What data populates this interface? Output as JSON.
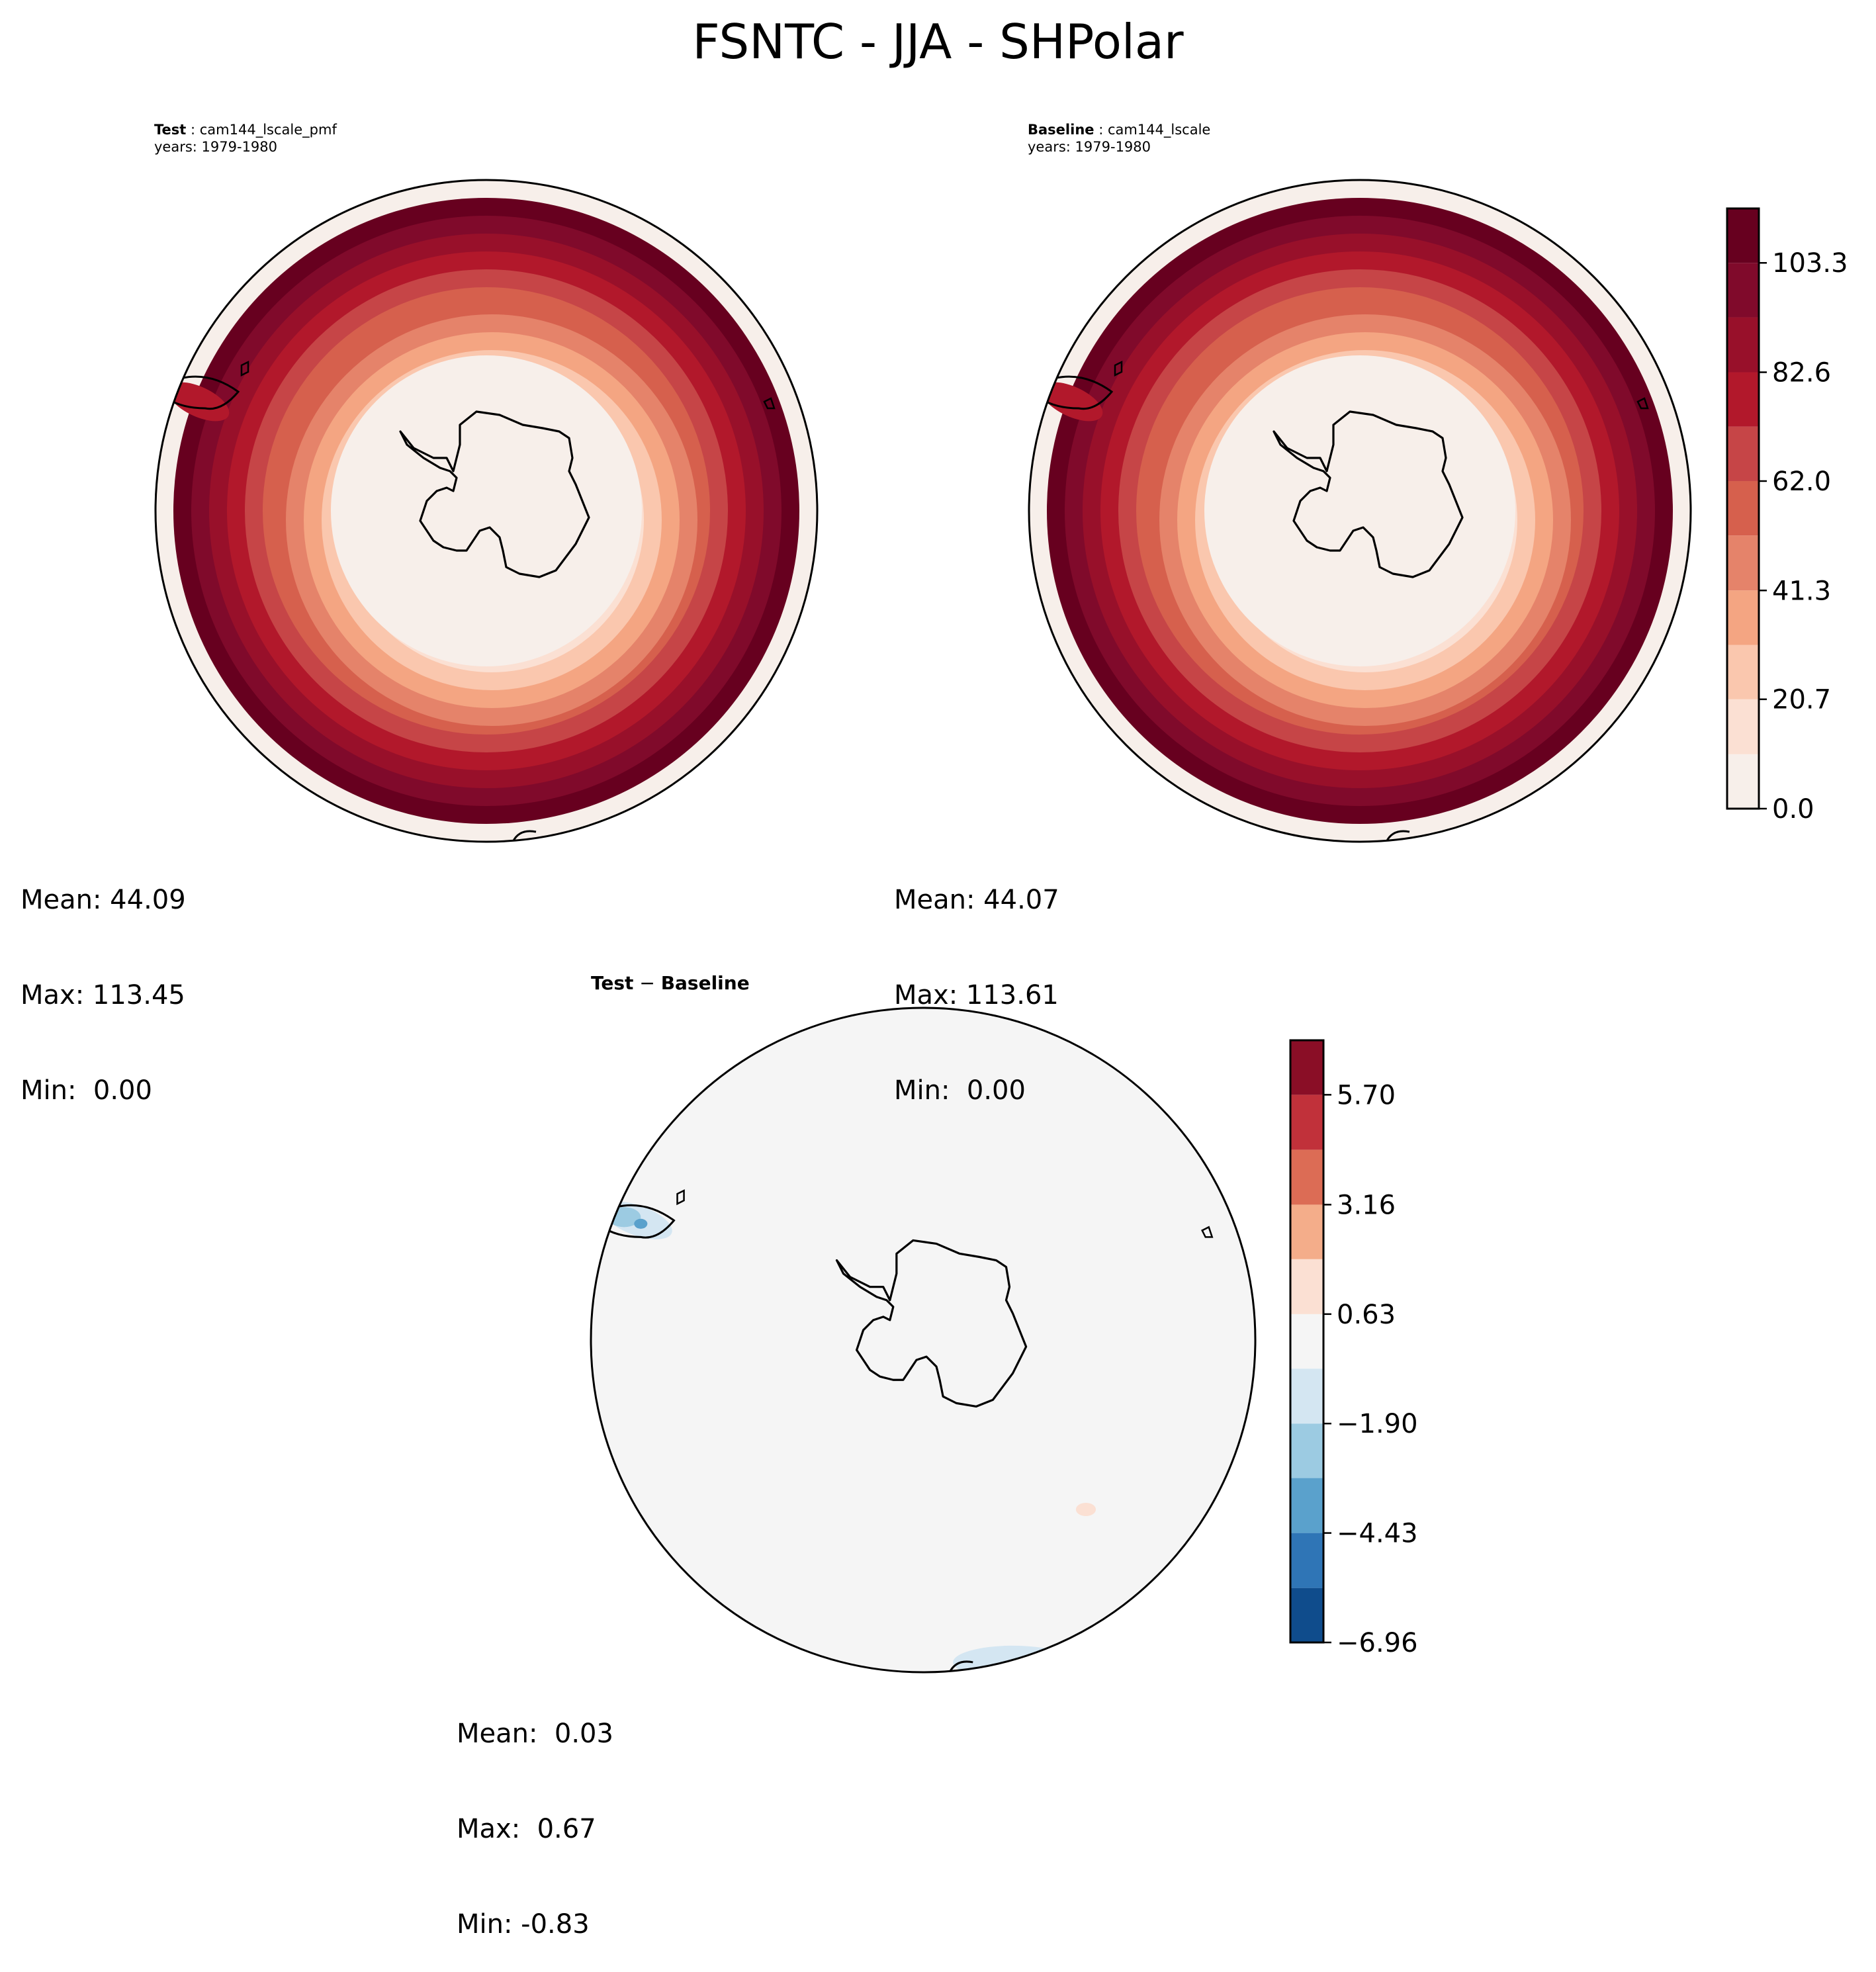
{
  "figure": {
    "title": "FSNTC - JJA - SHPolar"
  },
  "panels": {
    "test": {
      "label": "Test",
      "name": "cam144_lscale_pmf",
      "years": "years: 1979-1980",
      "mean": "Mean: 44.09",
      "max": "Max: 113.45",
      "min": "Min:  0.00"
    },
    "baseline": {
      "label": "Baseline",
      "name": "cam144_lscale",
      "years": "years: 1979-1980",
      "mean": "Mean: 44.07",
      "max": "Max: 113.61",
      "min": "Min:  0.00"
    },
    "diff": {
      "label_left": "Test",
      "label_right": "Baseline",
      "mean": "Mean:  0.03",
      "max": "Max:  0.67",
      "min": "Min: -0.83"
    }
  },
  "chart_data": [
    {
      "type": "heatmap",
      "projection": "south-polar-stereographic",
      "panel": "Test",
      "levels": [
        0.0,
        10.3,
        20.7,
        31.0,
        41.3,
        51.7,
        62.0,
        72.3,
        82.6,
        93.0,
        103.3,
        113.6
      ],
      "colorbar_ticks": [
        0.0,
        20.7,
        41.3,
        62.0,
        82.6,
        103.3
      ],
      "colormap": [
        "#f7efea",
        "#fbe0d3",
        "#fac7ae",
        "#f4a582",
        "#e5836a",
        "#d6604d",
        "#c64547",
        "#b2182b",
        "#98102a",
        "#800a2b",
        "#67001f"
      ],
      "mean": 44.09,
      "max": 113.45,
      "min": 0.0
    },
    {
      "type": "heatmap",
      "projection": "south-polar-stereographic",
      "panel": "Baseline",
      "levels": [
        0.0,
        10.3,
        20.7,
        31.0,
        41.3,
        51.7,
        62.0,
        72.3,
        82.6,
        93.0,
        103.3,
        113.6
      ],
      "colorbar_ticks": [
        0.0,
        20.7,
        41.3,
        62.0,
        82.6,
        103.3
      ],
      "colorbar_tick_labels": [
        "0.0",
        "20.7",
        "41.3",
        "62.0",
        "82.6",
        "103.3"
      ],
      "colormap": [
        "#f7efea",
        "#fbe0d3",
        "#fac7ae",
        "#f4a582",
        "#e5836a",
        "#d6604d",
        "#c64547",
        "#b2182b",
        "#98102a",
        "#800a2b",
        "#67001f"
      ],
      "mean": 44.07,
      "max": 113.61,
      "min": 0.0
    },
    {
      "type": "heatmap",
      "projection": "south-polar-stereographic",
      "panel": "Test - Baseline",
      "levels": [
        -6.96,
        -5.7,
        -4.43,
        -3.16,
        -1.9,
        -0.63,
        0.63,
        1.9,
        3.16,
        4.43,
        5.7,
        6.96
      ],
      "colorbar_ticks": [
        -6.96,
        -4.43,
        -1.9,
        0.63,
        3.16,
        5.7
      ],
      "colorbar_tick_labels": [
        "−6.96",
        "−4.43",
        "−1.90",
        "0.63",
        "3.16",
        "5.70"
      ],
      "colormap": [
        "#0f4c8c",
        "#2f75b6",
        "#5aa1cc",
        "#9ccbe2",
        "#d4e6f2",
        "#f5f5f5",
        "#fbe0d3",
        "#f4ad8a",
        "#dc6c55",
        "#c1313a",
        "#8a0e26"
      ],
      "mean": 0.03,
      "max": 0.67,
      "min": -0.83
    }
  ]
}
